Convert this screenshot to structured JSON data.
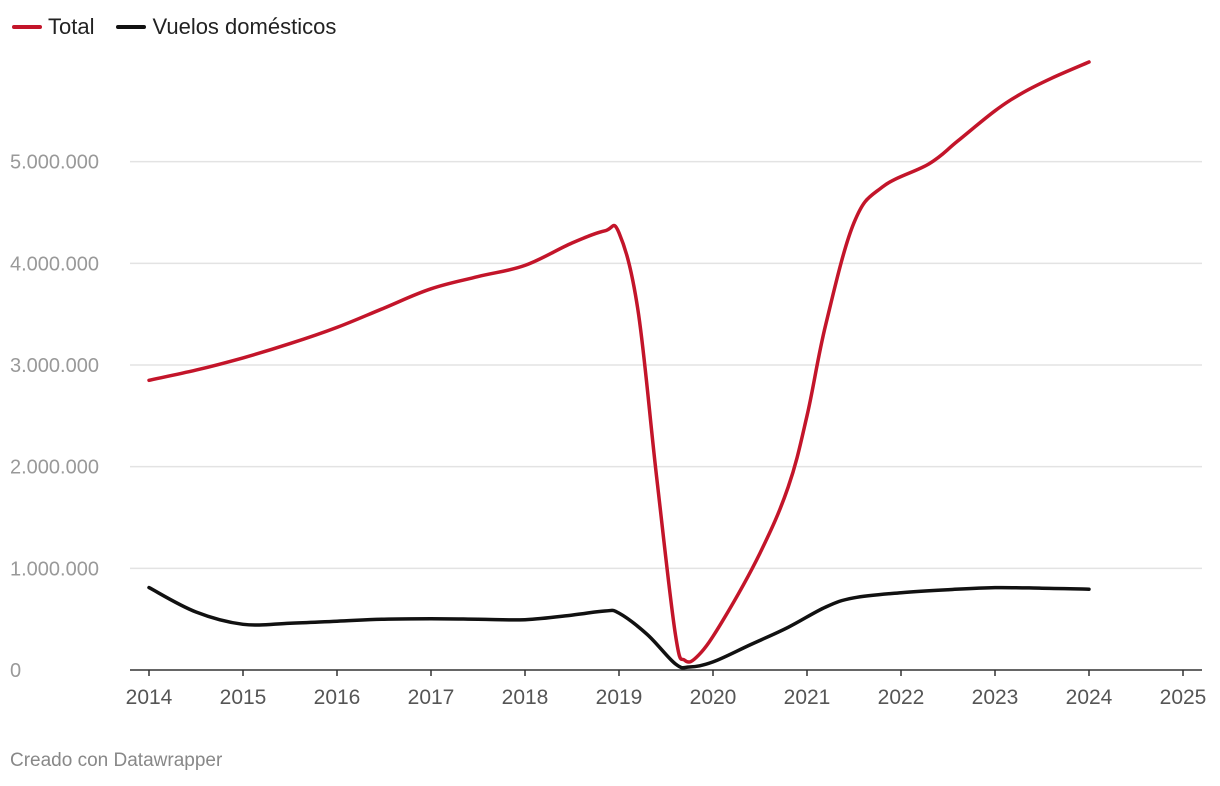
{
  "chart_data": {
    "type": "line",
    "title": "",
    "xlabel": "",
    "ylabel": "",
    "x": [
      "2014",
      "2015",
      "2016",
      "2017",
      "2018",
      "2019",
      "2020",
      "2021",
      "2022",
      "2023",
      "2024",
      "2025"
    ],
    "ylim": [
      0,
      6000000
    ],
    "yticks": [
      0,
      1000000,
      2000000,
      3000000,
      4000000,
      5000000
    ],
    "ytick_labels": [
      "0",
      "1.000.000",
      "2.000.000",
      "3.000.000",
      "4.000.000",
      "5.000.000"
    ],
    "series": [
      {
        "name": "Total",
        "color": "#c3152a",
        "values": [
          [
            2014.0,
            2850000
          ],
          [
            2014.5,
            2950000
          ],
          [
            2015.0,
            3070000
          ],
          [
            2015.5,
            3210000
          ],
          [
            2016.0,
            3370000
          ],
          [
            2016.5,
            3560000
          ],
          [
            2017.0,
            3750000
          ],
          [
            2017.5,
            3870000
          ],
          [
            2018.0,
            3980000
          ],
          [
            2018.5,
            4200000
          ],
          [
            2018.85,
            4320000
          ],
          [
            2019.0,
            4300000
          ],
          [
            2019.2,
            3550000
          ],
          [
            2019.4,
            1900000
          ],
          [
            2019.6,
            350000
          ],
          [
            2019.7,
            95000
          ],
          [
            2019.85,
            150000
          ],
          [
            2020.1,
            480000
          ],
          [
            2020.5,
            1150000
          ],
          [
            2020.8,
            1800000
          ],
          [
            2021.0,
            2500000
          ],
          [
            2021.2,
            3400000
          ],
          [
            2021.5,
            4400000
          ],
          [
            2021.8,
            4750000
          ],
          [
            2022.3,
            4980000
          ],
          [
            2022.6,
            5200000
          ],
          [
            2023.0,
            5500000
          ],
          [
            2023.3,
            5680000
          ],
          [
            2023.6,
            5820000
          ],
          [
            2024.0,
            5980000
          ]
        ]
      },
      {
        "name": "Vuelos domésticos",
        "color": "#111111",
        "values": [
          [
            2014.0,
            810000
          ],
          [
            2014.5,
            570000
          ],
          [
            2015.0,
            450000
          ],
          [
            2015.5,
            460000
          ],
          [
            2016.0,
            480000
          ],
          [
            2016.5,
            500000
          ],
          [
            2017.0,
            505000
          ],
          [
            2017.5,
            500000
          ],
          [
            2018.0,
            495000
          ],
          [
            2018.5,
            540000
          ],
          [
            2018.85,
            580000
          ],
          [
            2019.0,
            560000
          ],
          [
            2019.3,
            350000
          ],
          [
            2019.6,
            60000
          ],
          [
            2019.75,
            30000
          ],
          [
            2020.0,
            80000
          ],
          [
            2020.4,
            250000
          ],
          [
            2020.8,
            420000
          ],
          [
            2021.2,
            620000
          ],
          [
            2021.5,
            710000
          ],
          [
            2022.0,
            760000
          ],
          [
            2022.5,
            790000
          ],
          [
            2023.0,
            810000
          ],
          [
            2023.5,
            805000
          ],
          [
            2024.0,
            795000
          ]
        ]
      }
    ],
    "legend": "top-left"
  },
  "footer": "Creado con Datawrapper"
}
